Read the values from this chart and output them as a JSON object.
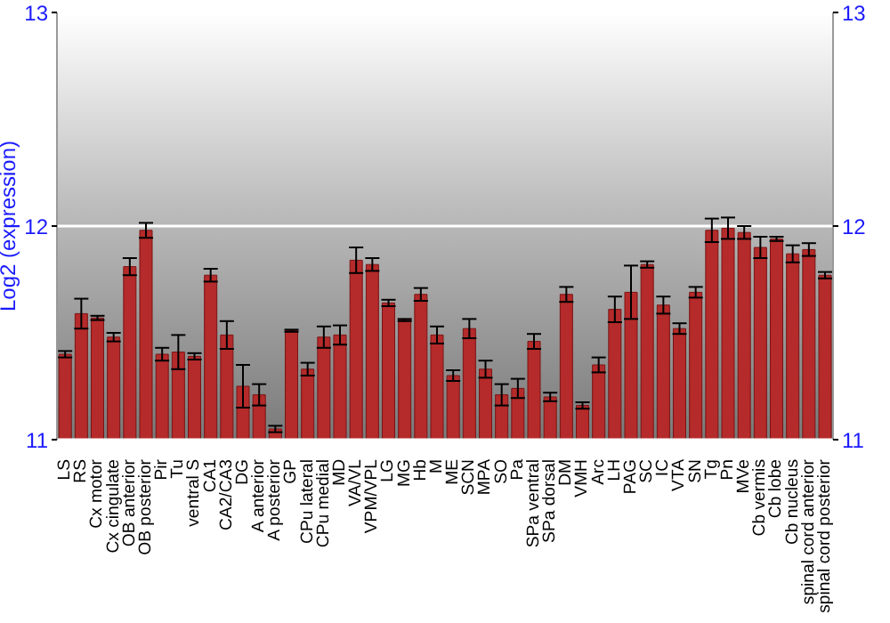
{
  "chart_data": {
    "type": "bar",
    "ylabel": "Log2 (expression)",
    "categories": [
      "LS",
      "RS",
      "Cx motor",
      "Cx cingulate",
      "OB anterior",
      "OB posterior",
      "Pir",
      "Tu",
      "ventral S",
      "CA1",
      "CA2/CA3",
      "DG",
      "A anterior",
      "A posterior",
      "GP",
      "CPu lateral",
      "CPu medial",
      "MD",
      "VA/VL",
      "VPM/VPL",
      "LG",
      "MG",
      "Hb",
      "M",
      "ME",
      "SCN",
      "MPA",
      "SO",
      "Pa",
      "SPa ventral",
      "SPa dorsal",
      "DM",
      "VMH",
      "Arc",
      "LH",
      "PAG",
      "SC",
      "IC",
      "VTA",
      "SN",
      "Tg",
      "Pn",
      "MVe",
      "Cb vermis",
      "Cb lobe",
      "Cb nucleus",
      "spinal cord anterior",
      "spinal cord posterior"
    ],
    "series": [
      {
        "color": "#b52a2a",
        "values": [
          11.4,
          11.59,
          11.57,
          11.48,
          11.81,
          11.98,
          11.4,
          11.41,
          11.39,
          11.77,
          11.49,
          11.25,
          11.21,
          11.05,
          11.51,
          11.33,
          11.48,
          11.49,
          11.84,
          11.82,
          11.64,
          11.56,
          11.68,
          11.49,
          11.3,
          11.52,
          11.33,
          11.21,
          11.24,
          11.46,
          11.2,
          11.68,
          11.16,
          11.35,
          11.61,
          11.69,
          11.82,
          11.63,
          11.52,
          11.69,
          11.98,
          11.99,
          11.97,
          11.9,
          11.94,
          11.87,
          11.89,
          11.77
        ],
        "errors": [
          0.015,
          0.07,
          0.01,
          0.02,
          0.04,
          0.035,
          0.03,
          0.08,
          0.015,
          0.03,
          0.065,
          0.1,
          0.05,
          0.015,
          0.005,
          0.03,
          0.05,
          0.045,
          0.06,
          0.03,
          0.015,
          0.005,
          0.03,
          0.04,
          0.025,
          0.045,
          0.04,
          0.05,
          0.045,
          0.035,
          0.02,
          0.035,
          0.015,
          0.035,
          0.06,
          0.125,
          0.015,
          0.04,
          0.025,
          0.025,
          0.055,
          0.05,
          0.03,
          0.05,
          0.01,
          0.04,
          0.03,
          0.015
        ]
      }
    ],
    "ylim": [
      11,
      13
    ],
    "yticks": [
      11,
      12,
      13
    ],
    "y2lim": [
      11,
      13
    ],
    "y2ticks": [
      11,
      12,
      13
    ],
    "grid": "y"
  }
}
